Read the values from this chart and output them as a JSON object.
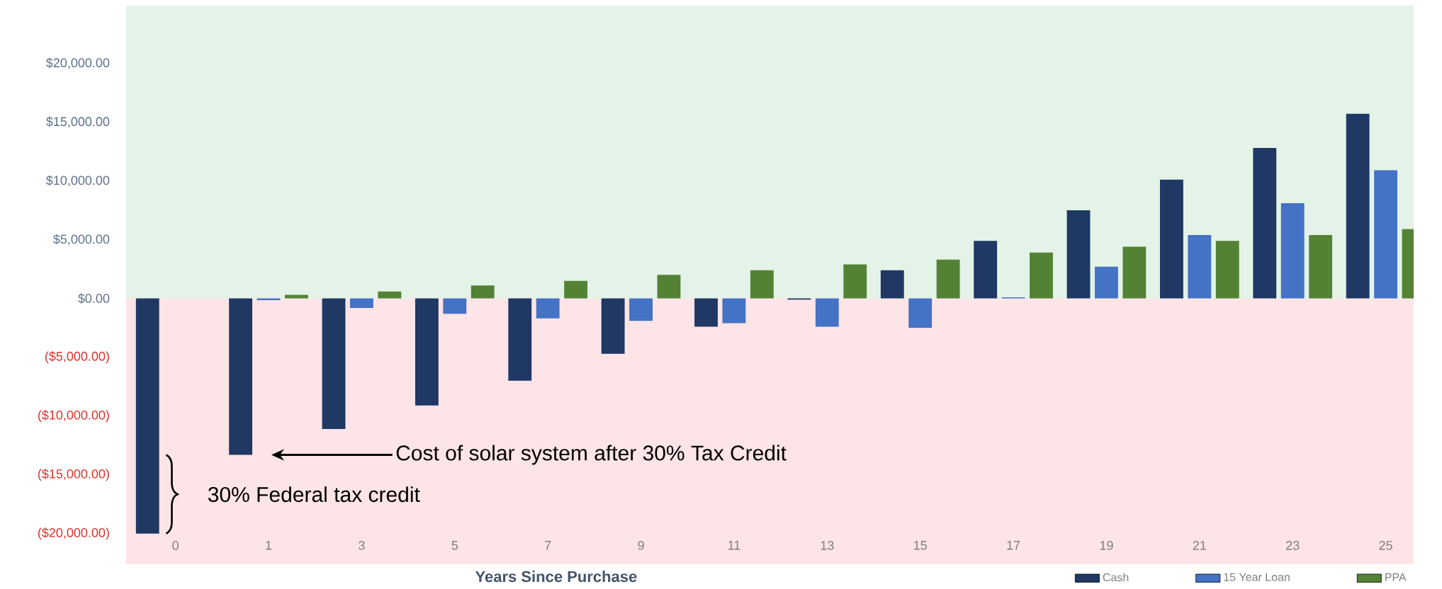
{
  "chart_data": {
    "type": "bar",
    "xlabel": "Years Since Purchase",
    "categories": [
      "0",
      "1",
      "3",
      "5",
      "7",
      "9",
      "11",
      "13",
      "15",
      "17",
      "19",
      "21",
      "23",
      "25"
    ],
    "series": [
      {
        "name": "Cash",
        "color": "#1f3864",
        "values": [
          -20000,
          -13300,
          -11100,
          -9100,
          -7000,
          -4700,
          -2400,
          -100,
          2400,
          4900,
          7500,
          10100,
          12800,
          15700
        ]
      },
      {
        "name": "15 Year Loan",
        "color": "#4472c4",
        "values": [
          null,
          -150,
          -800,
          -1300,
          -1700,
          -1900,
          -2100,
          -2400,
          -2500,
          100,
          2700,
          5400,
          8100,
          10900
        ]
      },
      {
        "name": "PPA",
        "color": "#548235",
        "values": [
          null,
          300,
          600,
          1100,
          1500,
          2000,
          2400,
          2900,
          3300,
          3900,
          4400,
          4900,
          5400,
          5900
        ]
      }
    ],
    "ylim": [
      -22600,
      24900
    ],
    "yticks": [
      {
        "value": -20000,
        "label": "($20,000.00)"
      },
      {
        "value": -15000,
        "label": "($15,000.00)"
      },
      {
        "value": -10000,
        "label": "($10,000.00)"
      },
      {
        "value": -5000,
        "label": "($5,000.00)"
      },
      {
        "value": 0,
        "label": "$0.00"
      },
      {
        "value": 5000,
        "label": "$5,000.00"
      },
      {
        "value": 10000,
        "label": "$10,000.00"
      },
      {
        "value": 15000,
        "label": "$15,000.00"
      },
      {
        "value": 20000,
        "label": "$20,000.00"
      }
    ],
    "bands": [
      {
        "axis": "y",
        "from": 0,
        "to": 24900,
        "color": "#e3f3e8"
      },
      {
        "axis": "y",
        "from": -22600,
        "to": 0,
        "color": "#fde4e6"
      }
    ],
    "annotations": [
      "Cost of solar system after 30% Tax Credit",
      "30% Federal tax credit"
    ],
    "legend": "bottom right"
  }
}
